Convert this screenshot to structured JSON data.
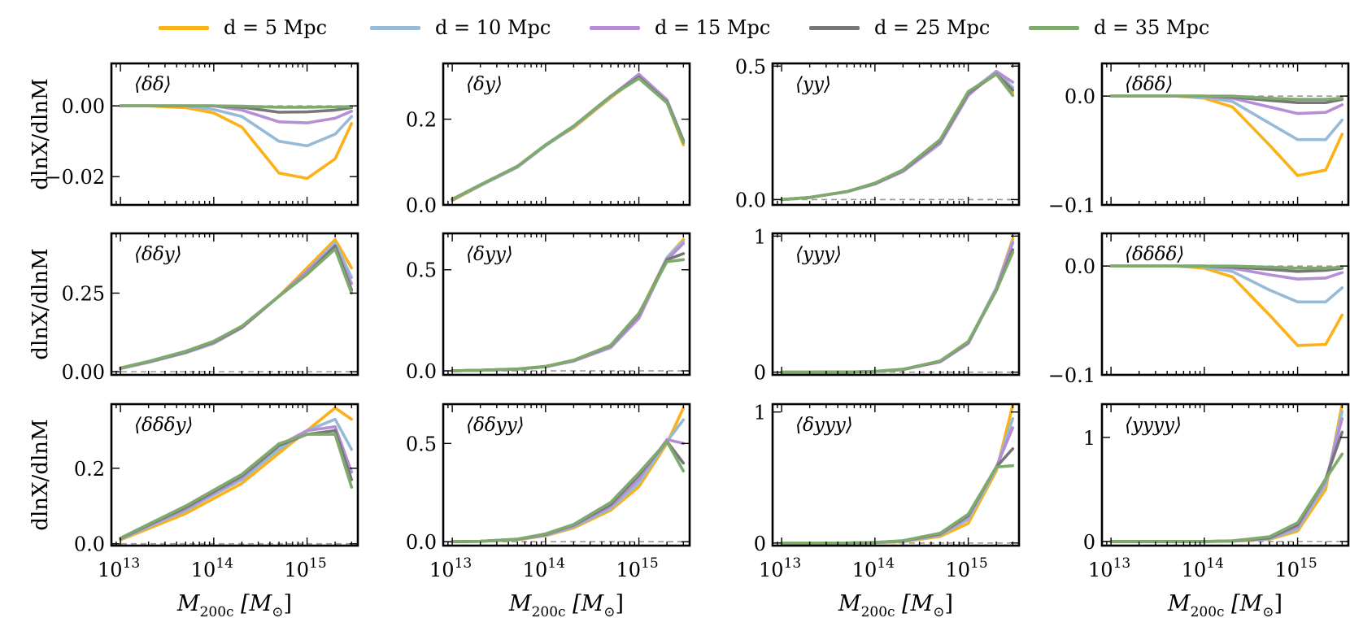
{
  "legend": [
    {
      "label": "d = 5 Mpc",
      "color": "#FBB117"
    },
    {
      "label": "d = 10 Mpc",
      "color": "#97BAD6"
    },
    {
      "label": "d = 15 Mpc",
      "color": "#B48FD6"
    },
    {
      "label": "d = 25 Mpc",
      "color": "#777777"
    },
    {
      "label": "d = 35 Mpc",
      "color": "#7FAA6E"
    }
  ],
  "x_tick_labels": [
    "10",
    "13",
    "10",
    "14",
    "10",
    "15"
  ],
  "xlabel_main": "M",
  "xlabel_sub": "200c",
  "xlabel_unit_open": "[M",
  "xlabel_unit_sub": "⊙",
  "xlabel_unit_close": "]",
  "ylabel": "dlnX/dlnM",
  "chart_data": {
    "type": "line",
    "xscale": "log",
    "x": [
      10000000000000.0,
      20000000000000.0,
      50000000000000.0,
      100000000000000.0,
      200000000000000.0,
      500000000000000.0,
      1000000000000000.0,
      2000000000000000.0,
      3000000000000000.0
    ],
    "xlim": [
      8000000000000.0,
      3500000000000000.0
    ],
    "legend_position": "top",
    "grid": false,
    "reference_line": 0,
    "series_names": [
      "d = 5 Mpc",
      "d = 10 Mpc",
      "d = 15 Mpc",
      "d = 25 Mpc",
      "d = 35 Mpc"
    ],
    "panels": [
      {
        "label": "⟨δδ⟩",
        "ylim": [
          -0.028,
          0.012
        ],
        "yticks": [
          0.0,
          -0.02
        ],
        "ytick_labels": [
          "0.00",
          "−0.02"
        ],
        "series": [
          [
            0,
            0,
            -0.0005,
            -0.002,
            -0.006,
            -0.019,
            -0.0205,
            -0.015,
            -0.005
          ],
          [
            0,
            0,
            0,
            -0.001,
            -0.003,
            -0.01,
            -0.0113,
            -0.008,
            -0.003
          ],
          [
            0,
            0,
            0,
            0,
            -0.0012,
            -0.0045,
            -0.0048,
            -0.0035,
            -0.0015
          ],
          [
            0,
            0,
            0,
            0,
            -0.0004,
            -0.0018,
            -0.0017,
            -0.0012,
            -0.0005
          ],
          [
            0,
            0,
            0,
            0,
            -0.0001,
            -0.0004,
            -0.0004,
            -0.0003,
            -0.0002
          ]
        ]
      },
      {
        "label": "⟨δy⟩",
        "ylim": [
          0,
          0.33
        ],
        "yticks": [
          0.0,
          0.2
        ],
        "ytick_labels": [
          "0.0",
          "0.2"
        ],
        "series": [
          [
            0.01,
            0.045,
            0.09,
            0.14,
            0.18,
            0.25,
            0.3,
            0.24,
            0.14
          ],
          [
            0.012,
            0.045,
            0.088,
            0.138,
            0.182,
            0.252,
            0.302,
            0.245,
            0.15
          ],
          [
            0.012,
            0.046,
            0.089,
            0.139,
            0.183,
            0.253,
            0.305,
            0.245,
            0.15
          ],
          [
            0.013,
            0.047,
            0.09,
            0.14,
            0.184,
            0.254,
            0.298,
            0.24,
            0.15
          ],
          [
            0.013,
            0.047,
            0.09,
            0.14,
            0.184,
            0.254,
            0.295,
            0.238,
            0.145
          ]
        ]
      },
      {
        "label": "⟨yy⟩",
        "ylim": [
          -0.02,
          0.51
        ],
        "yticks": [
          0.0,
          0.5
        ],
        "ytick_labels": [
          "0.0",
          "0.5"
        ],
        "series": [
          [
            0,
            0.008,
            0.03,
            0.06,
            0.11,
            0.22,
            0.4,
            0.47,
            0.4
          ],
          [
            0,
            0.008,
            0.03,
            0.06,
            0.11,
            0.22,
            0.4,
            0.48,
            0.42
          ],
          [
            0,
            0.008,
            0.029,
            0.058,
            0.105,
            0.21,
            0.39,
            0.48,
            0.44
          ],
          [
            0,
            0.008,
            0.03,
            0.06,
            0.11,
            0.22,
            0.4,
            0.47,
            0.41
          ],
          [
            0,
            0.008,
            0.03,
            0.062,
            0.112,
            0.225,
            0.405,
            0.47,
            0.39
          ]
        ]
      },
      {
        "label": "⟨δδδ⟩",
        "ylim": [
          -0.1,
          0.03
        ],
        "yticks": [
          0.0,
          -0.1
        ],
        "ytick_labels": [
          "0.0",
          "−0.1"
        ],
        "series": [
          [
            0,
            0,
            0,
            -0.002,
            -0.01,
            -0.045,
            -0.073,
            -0.068,
            -0.035
          ],
          [
            0,
            0,
            0,
            -0.001,
            -0.005,
            -0.025,
            -0.04,
            -0.04,
            -0.022
          ],
          [
            0,
            0,
            0,
            0,
            -0.002,
            -0.01,
            -0.016,
            -0.015,
            -0.008
          ],
          [
            0,
            0,
            0,
            0,
            -0.001,
            -0.004,
            -0.006,
            -0.006,
            -0.003
          ],
          [
            0,
            0,
            0,
            0,
            0,
            -0.002,
            -0.003,
            -0.003,
            -0.002
          ]
        ]
      },
      {
        "label": "⟨δδy⟩",
        "ylim": [
          -0.01,
          0.44
        ],
        "yticks": [
          0.0,
          0.25
        ],
        "ytick_labels": [
          "0.00",
          "0.25"
        ],
        "series": [
          [
            0.01,
            0.03,
            0.06,
            0.09,
            0.14,
            0.24,
            0.33,
            0.42,
            0.33
          ],
          [
            0.01,
            0.03,
            0.06,
            0.09,
            0.14,
            0.24,
            0.32,
            0.41,
            0.3
          ],
          [
            0.01,
            0.03,
            0.062,
            0.092,
            0.14,
            0.24,
            0.32,
            0.4,
            0.28
          ],
          [
            0.012,
            0.032,
            0.063,
            0.095,
            0.142,
            0.24,
            0.31,
            0.4,
            0.26
          ],
          [
            0.012,
            0.033,
            0.065,
            0.097,
            0.145,
            0.24,
            0.31,
            0.39,
            0.25
          ]
        ]
      },
      {
        "label": "⟨δyy⟩",
        "ylim": [
          -0.02,
          0.68
        ],
        "yticks": [
          0.0,
          0.5
        ],
        "ytick_labels": [
          "0.0",
          "0.5"
        ],
        "series": [
          [
            0,
            0.003,
            0.008,
            0.02,
            0.05,
            0.12,
            0.28,
            0.56,
            0.65
          ],
          [
            0,
            0.003,
            0.008,
            0.02,
            0.05,
            0.12,
            0.27,
            0.56,
            0.64
          ],
          [
            0,
            0.003,
            0.008,
            0.02,
            0.048,
            0.115,
            0.26,
            0.55,
            0.63
          ],
          [
            0,
            0.003,
            0.009,
            0.022,
            0.052,
            0.125,
            0.28,
            0.55,
            0.58
          ],
          [
            0,
            0.003,
            0.009,
            0.022,
            0.053,
            0.127,
            0.285,
            0.54,
            0.55
          ]
        ]
      },
      {
        "label": "⟨yyy⟩",
        "ylim": [
          -0.02,
          1.02
        ],
        "yticks": [
          0.0,
          1.0
        ],
        "ytick_labels": [
          "0",
          "1"
        ],
        "series": [
          [
            0,
            0,
            0.001,
            0.005,
            0.02,
            0.08,
            0.22,
            0.62,
            0.98
          ],
          [
            0,
            0,
            0.001,
            0.005,
            0.02,
            0.08,
            0.22,
            0.62,
            0.96
          ],
          [
            0,
            0,
            0.001,
            0.005,
            0.019,
            0.075,
            0.21,
            0.61,
            0.95
          ],
          [
            0,
            0,
            0.001,
            0.005,
            0.02,
            0.08,
            0.22,
            0.6,
            0.9
          ],
          [
            0,
            0,
            0.001,
            0.006,
            0.021,
            0.082,
            0.225,
            0.6,
            0.88
          ]
        ]
      },
      {
        "label": "⟨δδδδ⟩",
        "ylim": [
          -0.1,
          0.03
        ],
        "yticks": [
          0.0,
          -0.1
        ],
        "ytick_labels": [
          "0.0",
          "−0.1"
        ],
        "series": [
          [
            0,
            0,
            0,
            -0.002,
            -0.01,
            -0.045,
            -0.073,
            -0.072,
            -0.045
          ],
          [
            0,
            0,
            0,
            -0.001,
            -0.005,
            -0.022,
            -0.033,
            -0.033,
            -0.02
          ],
          [
            0,
            0,
            0,
            0,
            -0.002,
            -0.008,
            -0.012,
            -0.011,
            -0.006
          ],
          [
            0,
            0,
            0,
            0,
            -0.001,
            -0.003,
            -0.005,
            -0.004,
            -0.002
          ],
          [
            0,
            0,
            0,
            0,
            0,
            -0.001,
            -0.002,
            -0.002,
            -0.001
          ]
        ]
      },
      {
        "label": "⟨δδδy⟩",
        "ylim": [
          -0.005,
          0.37
        ],
        "yticks": [
          0.0,
          0.2
        ],
        "ytick_labels": [
          "0.0",
          "0.2"
        ],
        "series": [
          [
            0.01,
            0.04,
            0.08,
            0.12,
            0.16,
            0.24,
            0.3,
            0.36,
            0.33
          ],
          [
            0.012,
            0.045,
            0.088,
            0.13,
            0.17,
            0.25,
            0.3,
            0.33,
            0.25
          ],
          [
            0.013,
            0.048,
            0.092,
            0.134,
            0.175,
            0.26,
            0.3,
            0.31,
            0.19
          ],
          [
            0.014,
            0.05,
            0.096,
            0.138,
            0.18,
            0.26,
            0.29,
            0.3,
            0.17
          ],
          [
            0.015,
            0.052,
            0.1,
            0.142,
            0.184,
            0.265,
            0.29,
            0.29,
            0.15
          ]
        ]
      },
      {
        "label": "⟨δδyy⟩",
        "ylim": [
          -0.02,
          0.7
        ],
        "yticks": [
          0.0,
          0.5
        ],
        "ytick_labels": [
          "0.0",
          "0.5"
        ],
        "series": [
          [
            0,
            0.002,
            0.01,
            0.03,
            0.07,
            0.16,
            0.28,
            0.5,
            0.68
          ],
          [
            0,
            0.002,
            0.011,
            0.032,
            0.075,
            0.17,
            0.3,
            0.51,
            0.62
          ],
          [
            0,
            0.002,
            0.012,
            0.035,
            0.08,
            0.18,
            0.32,
            0.52,
            0.5
          ],
          [
            0,
            0.002,
            0.013,
            0.038,
            0.085,
            0.19,
            0.34,
            0.51,
            0.4
          ],
          [
            0,
            0.002,
            0.013,
            0.04,
            0.088,
            0.2,
            0.35,
            0.51,
            0.36
          ]
        ]
      },
      {
        "label": "⟨δyyy⟩",
        "ylim": [
          -0.02,
          1.06
        ],
        "yticks": [
          0.0,
          1.0
        ],
        "ytick_labels": [
          "0",
          "1"
        ],
        "series": [
          [
            0,
            0,
            0,
            0.002,
            0.01,
            0.05,
            0.15,
            0.55,
            1.05
          ],
          [
            0,
            0,
            0,
            0.003,
            0.012,
            0.06,
            0.18,
            0.57,
            0.95
          ],
          [
            0,
            0,
            0,
            0.003,
            0.014,
            0.065,
            0.2,
            0.58,
            0.88
          ],
          [
            0,
            0,
            0,
            0.004,
            0.016,
            0.07,
            0.21,
            0.58,
            0.72
          ],
          [
            0,
            0,
            0,
            0.004,
            0.018,
            0.075,
            0.22,
            0.58,
            0.59
          ]
        ]
      },
      {
        "label": "⟨yyyy⟩",
        "ylim": [
          -0.04,
          1.32
        ],
        "yticks": [
          0.0,
          1.0
        ],
        "ytick_labels": [
          "0",
          "1"
        ],
        "series": [
          [
            0,
            0,
            0,
            0,
            0.002,
            0.02,
            0.1,
            0.5,
            1.32
          ],
          [
            0,
            0,
            0,
            0,
            0.003,
            0.025,
            0.12,
            0.55,
            1.25
          ],
          [
            0,
            0,
            0,
            0,
            0.004,
            0.03,
            0.14,
            0.58,
            1.18
          ],
          [
            0,
            0,
            0,
            0,
            0.005,
            0.035,
            0.16,
            0.6,
            1.05
          ],
          [
            0,
            0,
            0,
            0,
            0.006,
            0.045,
            0.18,
            0.6,
            0.84
          ]
        ]
      }
    ]
  }
}
